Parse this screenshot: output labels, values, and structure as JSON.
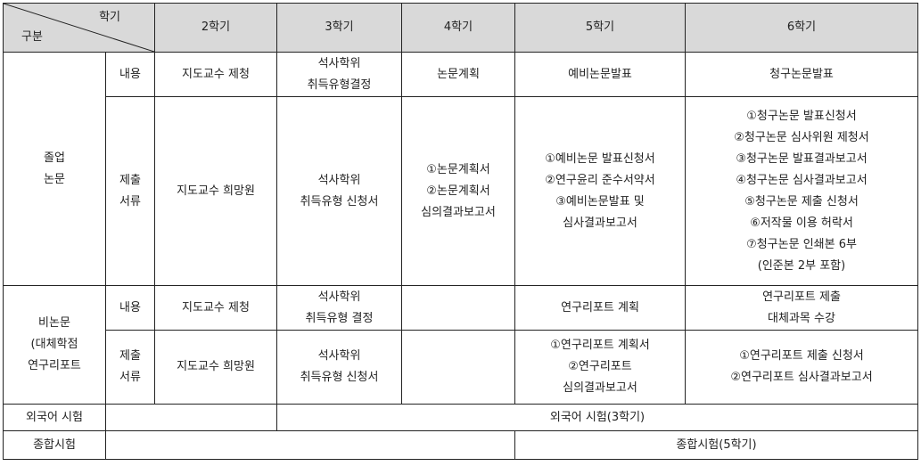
{
  "header": {
    "corner_top": "학기",
    "corner_bottom": "구분",
    "semesters": [
      "2학기",
      "3학기",
      "4학기",
      "5학기",
      "6학기"
    ]
  },
  "thesis": {
    "group": [
      "졸업",
      "논문"
    ],
    "content_label": "내용",
    "content": [
      [
        "지도교수 제청"
      ],
      [
        "석사학위",
        "취득유형결정"
      ],
      [
        "논문계획"
      ],
      [
        "예비논문발표"
      ],
      [
        "청구논문발표"
      ]
    ],
    "docs_label": [
      "제출",
      "서류"
    ],
    "docs": [
      [
        "지도교수 희망원"
      ],
      [
        "석사학위",
        "취득유형 신청서"
      ],
      [
        "①논문계획서",
        "②논문계획서",
        "심의결과보고서"
      ],
      [
        "①예비논문 발표신청서",
        "②연구윤리 준수서약서",
        "③예비논문발표 및",
        "심사결과보고서"
      ],
      [
        "①청구논문 발표신청서",
        "②청구논문 심사위원 제청서",
        "③청구논문 발표결과보고서",
        "④청구논문 심사결과보고서",
        "⑤청구논문 제출 신청서",
        "⑥저작물 이용 허락서",
        "⑦청구논문 인쇄본 6부",
        "(인준본 2부 포함)"
      ]
    ]
  },
  "nonthesis": {
    "group": [
      "비논문",
      "(대체학점",
      "연구리포트"
    ],
    "content_label": "내용",
    "content": [
      [
        "지도교수 제청"
      ],
      [
        "석사학위",
        "취득유형 결정"
      ],
      [],
      [
        "연구리포트 계획"
      ],
      [
        "연구리포트 제출",
        "대체과목 수강"
      ]
    ],
    "docs_label": [
      "제출",
      "서류"
    ],
    "docs": [
      [
        "지도교수 희망원"
      ],
      [
        "석사학위",
        "취득유형 신청서"
      ],
      [],
      [
        "①연구리포트 계획서",
        "②연구리포트",
        "심의결과보고서"
      ],
      [
        "①연구리포트 제출 신청서",
        "②연구리포트 심사결과보고서"
      ]
    ]
  },
  "foreign": {
    "label": "외국어 시험",
    "value": "외국어 시험(3학기)"
  },
  "comprehensive": {
    "label": "종합시험",
    "value": "종합시험(5학기)"
  }
}
